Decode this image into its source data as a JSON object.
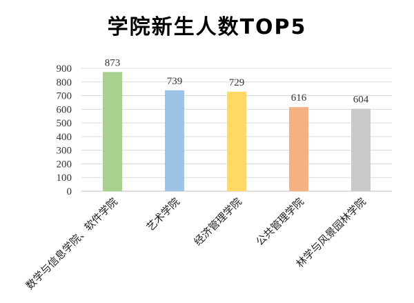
{
  "chart_data": {
    "type": "bar",
    "title": "学院新生人数TOP5",
    "categories": [
      "数学与信息学院、软件学院",
      "艺术学院",
      "经济管理学院",
      "公共管理学院",
      "林学与风景园林学院"
    ],
    "values": [
      873,
      739,
      729,
      616,
      604
    ],
    "data_labels": [
      "873",
      "739",
      "729",
      "616",
      "604"
    ],
    "colors": [
      "#a9d18e",
      "#9dc3e6",
      "#ffd966",
      "#f4b183",
      "#c9c9c9"
    ],
    "ylim": [
      0,
      900
    ],
    "yticks": [
      0,
      100,
      200,
      300,
      400,
      500,
      600,
      700,
      800,
      900
    ],
    "ytick_labels": [
      "0",
      "100",
      "200",
      "300",
      "400",
      "500",
      "600",
      "700",
      "800",
      "900"
    ],
    "grid": true,
    "xlabel": "",
    "ylabel": ""
  }
}
